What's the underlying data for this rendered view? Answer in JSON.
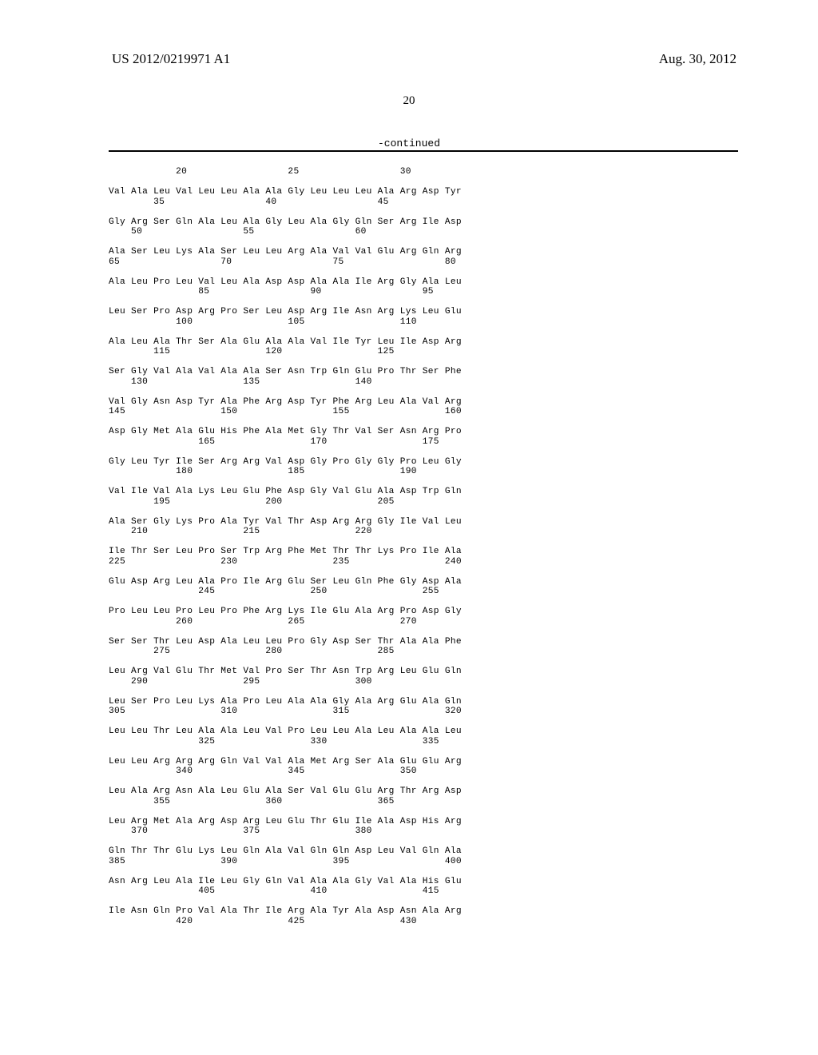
{
  "header": {
    "pub_number": "US 2012/0219971 A1",
    "date": "Aug. 30, 2012"
  },
  "page_number": "20",
  "continued_label": "-continued",
  "sequence_text": "            20                  25                  30\n\nVal Ala Leu Val Leu Leu Ala Ala Gly Leu Leu Leu Ala Arg Asp Tyr\n        35                  40                  45\n\nGly Arg Ser Gln Ala Leu Ala Gly Leu Ala Gly Gln Ser Arg Ile Asp\n    50                  55                  60\n\nAla Ser Leu Lys Ala Ser Leu Leu Arg Ala Val Val Glu Arg Gln Arg\n65                  70                  75                  80\n\nAla Leu Pro Leu Val Leu Ala Asp Asp Ala Ala Ile Arg Gly Ala Leu\n                85                  90                  95\n\nLeu Ser Pro Asp Arg Pro Ser Leu Asp Arg Ile Asn Arg Lys Leu Glu\n            100                 105                 110\n\nAla Leu Ala Thr Ser Ala Glu Ala Ala Val Ile Tyr Leu Ile Asp Arg\n        115                 120                 125\n\nSer Gly Val Ala Val Ala Ala Ser Asn Trp Gln Glu Pro Thr Ser Phe\n    130                 135                 140\n\nVal Gly Asn Asp Tyr Ala Phe Arg Asp Tyr Phe Arg Leu Ala Val Arg\n145                 150                 155                 160\n\nAsp Gly Met Ala Glu His Phe Ala Met Gly Thr Val Ser Asn Arg Pro\n                165                 170                 175\n\nGly Leu Tyr Ile Ser Arg Arg Val Asp Gly Pro Gly Gly Pro Leu Gly\n            180                 185                 190\n\nVal Ile Val Ala Lys Leu Glu Phe Asp Gly Val Glu Ala Asp Trp Gln\n        195                 200                 205\n\nAla Ser Gly Lys Pro Ala Tyr Val Thr Asp Arg Arg Gly Ile Val Leu\n    210                 215                 220\n\nIle Thr Ser Leu Pro Ser Trp Arg Phe Met Thr Thr Lys Pro Ile Ala\n225                 230                 235                 240\n\nGlu Asp Arg Leu Ala Pro Ile Arg Glu Ser Leu Gln Phe Gly Asp Ala\n                245                 250                 255\n\nPro Leu Leu Pro Leu Pro Phe Arg Lys Ile Glu Ala Arg Pro Asp Gly\n            260                 265                 270\n\nSer Ser Thr Leu Asp Ala Leu Leu Pro Gly Asp Ser Thr Ala Ala Phe\n        275                 280                 285\n\nLeu Arg Val Glu Thr Met Val Pro Ser Thr Asn Trp Arg Leu Glu Gln\n    290                 295                 300\n\nLeu Ser Pro Leu Lys Ala Pro Leu Ala Ala Gly Ala Arg Glu Ala Gln\n305                 310                 315                 320\n\nLeu Leu Thr Leu Ala Ala Leu Val Pro Leu Leu Ala Leu Ala Ala Leu\n                325                 330                 335\n\nLeu Leu Arg Arg Arg Gln Val Val Ala Met Arg Ser Ala Glu Glu Arg\n            340                 345                 350\n\nLeu Ala Arg Asn Ala Leu Glu Ala Ser Val Glu Glu Arg Thr Arg Asp\n        355                 360                 365\n\nLeu Arg Met Ala Arg Asp Arg Leu Glu Thr Glu Ile Ala Asp His Arg\n    370                 375                 380\n\nGln Thr Thr Glu Lys Leu Gln Ala Val Gln Gln Asp Leu Val Gln Ala\n385                 390                 395                 400\n\nAsn Arg Leu Ala Ile Leu Gly Gln Val Ala Ala Gly Val Ala His Glu\n                405                 410                 415\n\nIle Asn Gln Pro Val Ala Thr Ile Arg Ala Tyr Ala Asp Asn Ala Arg\n            420                 425                 430"
}
